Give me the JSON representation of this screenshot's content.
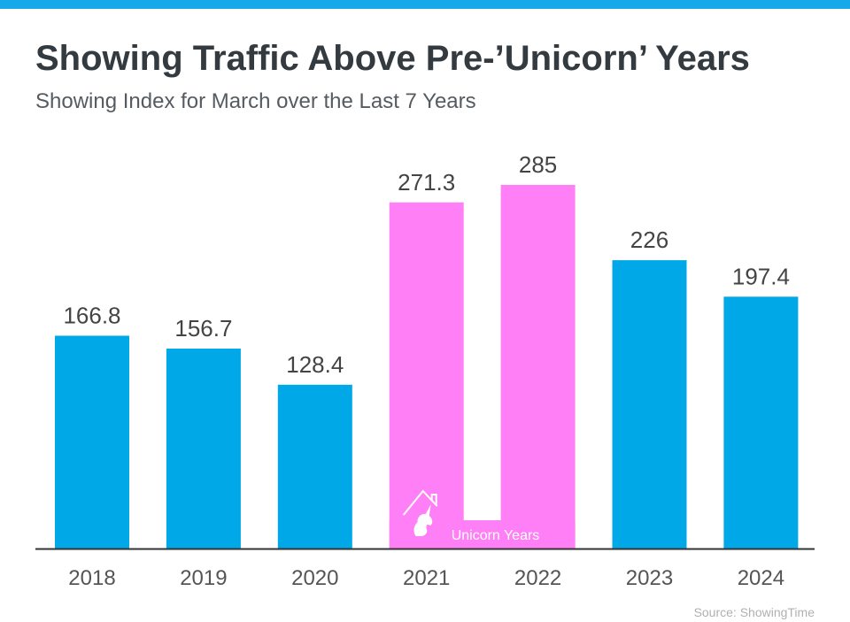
{
  "chart_data": {
    "type": "bar",
    "title": "Showing Traffic Above Pre-’Unicorn’ Years",
    "subtitle": "Showing Index for March over the Last 7 Years",
    "categories": [
      "2018",
      "2019",
      "2020",
      "2021",
      "2022",
      "2023",
      "2024"
    ],
    "values": [
      166.8,
      156.7,
      128.4,
      271.3,
      285,
      226,
      197.4
    ],
    "value_labels": [
      "166.8",
      "156.7",
      "128.4",
      "271.3",
      "285",
      "226",
      "197.4"
    ],
    "highlighted": [
      false,
      false,
      false,
      true,
      true,
      false,
      false
    ],
    "annotation": "Unicorn Years",
    "annotation_icon": "unicorn-house-icon",
    "xlabel": "",
    "ylabel": "",
    "ylim": [
      0,
      285
    ],
    "grid": false,
    "colors": {
      "default": "#00a8e8",
      "highlight": "#ff80f6",
      "accent_bar": "#15a9e9"
    },
    "source": "Source: ShowingTime"
  }
}
